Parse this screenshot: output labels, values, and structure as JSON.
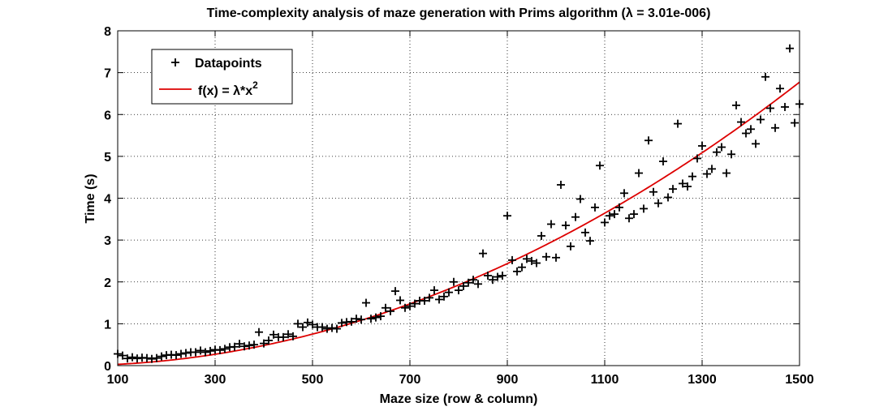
{
  "chart_data": {
    "type": "scatter",
    "title": "Time-complexity analysis of maze generation with Prims algorithm (λ = 3.01e-006)",
    "xlabel": "Maze size (row & column)",
    "ylabel": "Time (s)",
    "xlim": [
      100,
      1500
    ],
    "ylim": [
      0,
      8
    ],
    "xticks": [
      100,
      300,
      500,
      700,
      900,
      1100,
      1300,
      1500
    ],
    "yticks": [
      0,
      1,
      2,
      3,
      4,
      5,
      6,
      7,
      8
    ],
    "grid": true,
    "legend_position": "top-left",
    "series": [
      {
        "name": "Datapoints",
        "marker": "+",
        "color": "#000000",
        "x": [
          100,
          110,
          120,
          130,
          140,
          150,
          160,
          170,
          180,
          190,
          200,
          210,
          220,
          230,
          240,
          250,
          260,
          270,
          280,
          290,
          300,
          310,
          320,
          330,
          340,
          350,
          360,
          370,
          380,
          390,
          400,
          410,
          420,
          430,
          440,
          450,
          460,
          470,
          480,
          490,
          500,
          510,
          520,
          530,
          540,
          550,
          560,
          570,
          580,
          590,
          600,
          610,
          620,
          630,
          640,
          650,
          660,
          670,
          680,
          690,
          700,
          710,
          720,
          730,
          740,
          750,
          760,
          770,
          780,
          790,
          800,
          810,
          820,
          830,
          840,
          850,
          860,
          870,
          880,
          890,
          900,
          910,
          920,
          930,
          940,
          950,
          960,
          970,
          980,
          990,
          1000,
          1010,
          1020,
          1030,
          1040,
          1050,
          1060,
          1070,
          1080,
          1090,
          1100,
          1110,
          1120,
          1130,
          1140,
          1150,
          1160,
          1170,
          1180,
          1190,
          1200,
          1210,
          1220,
          1230,
          1240,
          1250,
          1260,
          1270,
          1280,
          1290,
          1300,
          1310,
          1320,
          1330,
          1340,
          1350,
          1360,
          1370,
          1380,
          1390,
          1400,
          1410,
          1420,
          1430,
          1440,
          1450,
          1460,
          1470,
          1480,
          1490,
          1500
        ],
        "y": [
          0.28,
          0.24,
          0.17,
          0.2,
          0.17,
          0.19,
          0.18,
          0.16,
          0.18,
          0.22,
          0.25,
          0.26,
          0.25,
          0.28,
          0.3,
          0.32,
          0.32,
          0.36,
          0.32,
          0.35,
          0.38,
          0.37,
          0.4,
          0.44,
          0.45,
          0.52,
          0.46,
          0.48,
          0.5,
          0.8,
          0.53,
          0.6,
          0.74,
          0.68,
          0.68,
          0.75,
          0.7,
          1.0,
          0.92,
          1.03,
          0.98,
          0.92,
          0.92,
          0.88,
          0.9,
          0.88,
          1.02,
          1.04,
          1.05,
          1.12,
          1.1,
          1.5,
          1.12,
          1.15,
          1.18,
          1.38,
          1.3,
          1.78,
          1.56,
          1.38,
          1.42,
          1.48,
          1.55,
          1.55,
          1.62,
          1.8,
          1.58,
          1.65,
          1.75,
          2.0,
          1.8,
          1.9,
          1.98,
          2.05,
          1.95,
          2.68,
          2.15,
          2.05,
          2.12,
          2.15,
          3.58,
          2.52,
          2.25,
          2.35,
          2.55,
          2.5,
          2.45,
          3.1,
          2.6,
          3.38,
          2.58,
          4.32,
          3.35,
          2.85,
          3.55,
          3.98,
          3.18,
          2.98,
          3.78,
          4.78,
          3.42,
          3.58,
          3.62,
          3.78,
          4.12,
          3.52,
          3.62,
          4.6,
          3.75,
          5.38,
          4.15,
          3.88,
          4.88,
          4.02,
          4.22,
          5.78,
          4.35,
          4.28,
          4.52,
          4.95,
          5.25,
          4.58,
          4.7,
          5.1,
          5.22,
          4.6,
          5.05,
          6.22,
          5.82,
          5.55,
          5.65,
          5.3,
          5.88,
          6.9,
          6.15,
          5.68,
          6.62,
          6.18,
          7.58,
          5.8,
          6.25
        ]
      },
      {
        "name": "f(x) = λ*x²",
        "line": "fit",
        "color": "#dd0000",
        "lambda": 3.01e-06
      }
    ],
    "legend": {
      "entries": [
        {
          "label": "Datapoints"
        },
        {
          "label_main": "f(x) = λ*x",
          "label_sup": "2"
        }
      ]
    }
  }
}
